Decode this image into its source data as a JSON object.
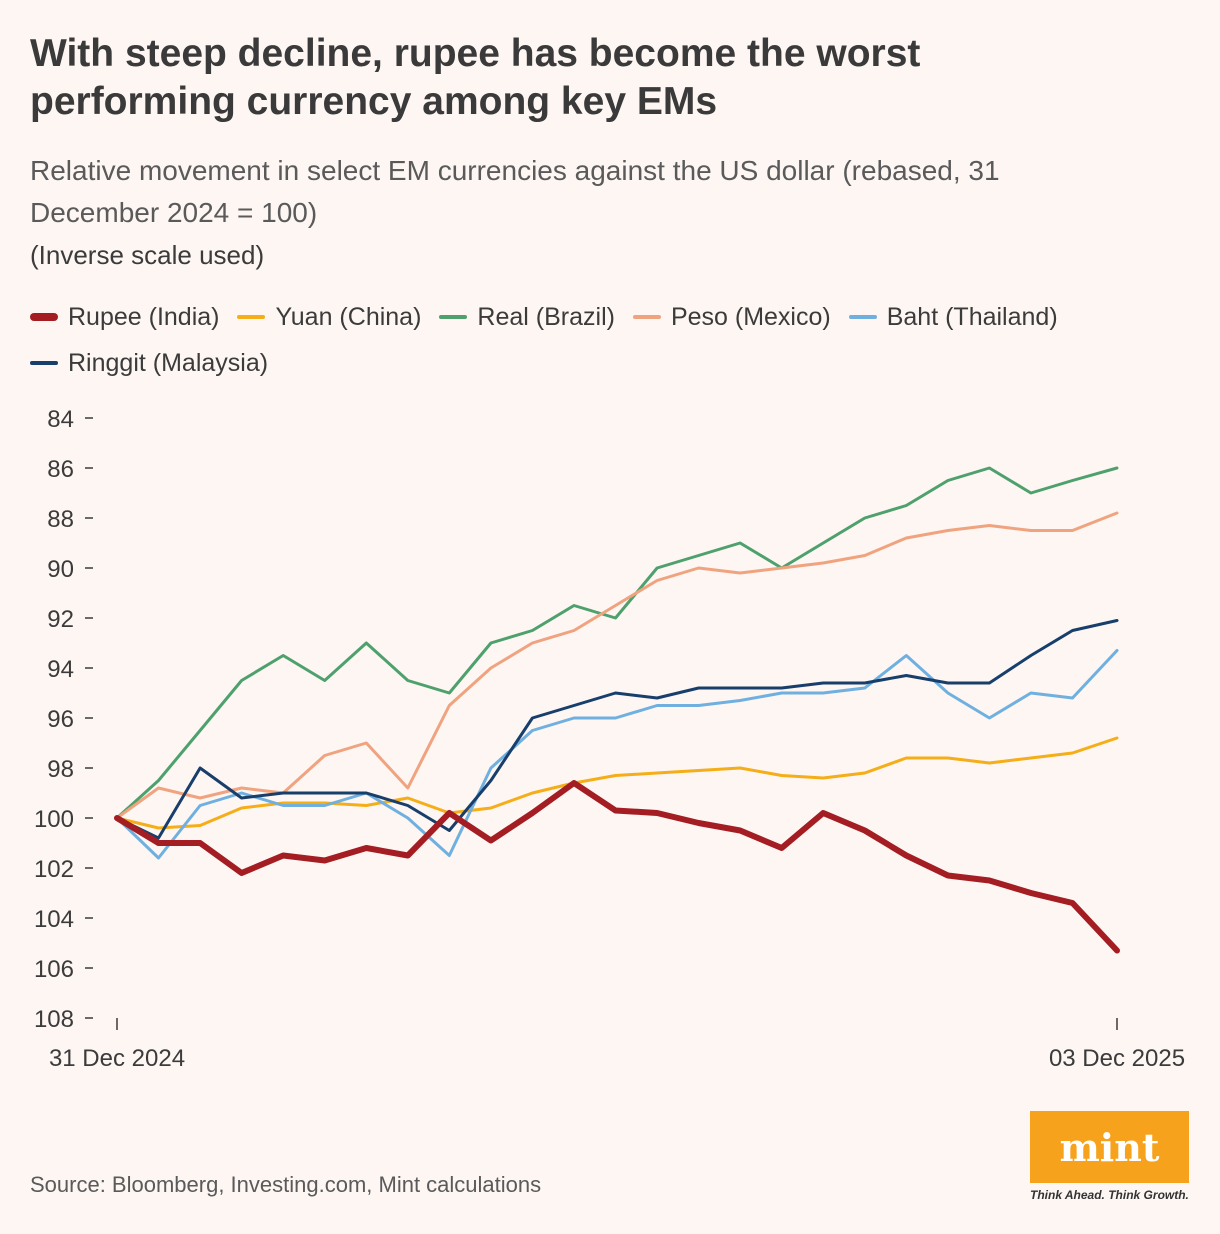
{
  "header": {
    "title": "With steep decline, rupee has become the worst performing currency among key EMs",
    "subtitle": "Relative movement in select EM currencies against the US dollar (rebased, 31 December 2024 = 100)",
    "note": "(Inverse scale used)"
  },
  "footer": {
    "source": "Source: Bloomberg, Investing.com, Mint calculations",
    "logo_text": "mint",
    "tagline": "Think Ahead. Think Growth."
  },
  "colors": {
    "background": "#fdf6f3",
    "logo_bg": "#f7a21c"
  },
  "chart_data": {
    "type": "line",
    "y_inverted": true,
    "ylim": [
      84,
      108
    ],
    "y_ticks": [
      84,
      86,
      88,
      90,
      92,
      94,
      96,
      98,
      100,
      102,
      104,
      106,
      108
    ],
    "x_range": [
      "31 Dec 2024",
      "03 Dec 2025"
    ],
    "x_tick_labels": [
      "31 Dec 2024",
      "03 Dec 2025"
    ],
    "legend_position": "top-left",
    "grid": false,
    "series": [
      {
        "name": "Rupee (India)",
        "color": "#a31d22",
        "thick": true,
        "points": [
          [
            "2024-12-31",
            100
          ],
          [
            "2025-01-14",
            101
          ],
          [
            "2025-01-28",
            101
          ],
          [
            "2025-02-11",
            102.2
          ],
          [
            "2025-02-25",
            101.5
          ],
          [
            "2025-03-11",
            101.7
          ],
          [
            "2025-03-25",
            101.2
          ],
          [
            "2025-04-08",
            101.5
          ],
          [
            "2025-04-22",
            99.8
          ],
          [
            "2025-05-06",
            100.9
          ],
          [
            "2025-05-20",
            99.8
          ],
          [
            "2025-06-03",
            98.6
          ],
          [
            "2025-06-17",
            99.7
          ],
          [
            "2025-07-01",
            99.8
          ],
          [
            "2025-07-15",
            100.2
          ],
          [
            "2025-07-29",
            100.5
          ],
          [
            "2025-08-12",
            101.2
          ],
          [
            "2025-08-26",
            99.8
          ],
          [
            "2025-09-09",
            100.5
          ],
          [
            "2025-09-23",
            101.5
          ],
          [
            "2025-10-07",
            102.3
          ],
          [
            "2025-10-21",
            102.5
          ],
          [
            "2025-11-04",
            103
          ],
          [
            "2025-11-18",
            103.4
          ],
          [
            "2025-12-03",
            105.3
          ]
        ]
      },
      {
        "name": "Yuan (China)",
        "color": "#f5ad18",
        "thick": false,
        "points": [
          [
            "2024-12-31",
            100
          ],
          [
            "2025-01-14",
            100.4
          ],
          [
            "2025-01-28",
            100.3
          ],
          [
            "2025-02-11",
            99.6
          ],
          [
            "2025-02-25",
            99.4
          ],
          [
            "2025-03-11",
            99.4
          ],
          [
            "2025-03-25",
            99.5
          ],
          [
            "2025-04-08",
            99.2
          ],
          [
            "2025-04-22",
            99.8
          ],
          [
            "2025-05-06",
            99.6
          ],
          [
            "2025-05-20",
            99.0
          ],
          [
            "2025-06-03",
            98.6
          ],
          [
            "2025-06-17",
            98.3
          ],
          [
            "2025-07-01",
            98.2
          ],
          [
            "2025-07-15",
            98.1
          ],
          [
            "2025-07-29",
            98.0
          ],
          [
            "2025-08-12",
            98.3
          ],
          [
            "2025-08-26",
            98.4
          ],
          [
            "2025-09-09",
            98.2
          ],
          [
            "2025-09-23",
            97.6
          ],
          [
            "2025-10-07",
            97.6
          ],
          [
            "2025-10-21",
            97.8
          ],
          [
            "2025-11-04",
            97.6
          ],
          [
            "2025-11-18",
            97.4
          ],
          [
            "2025-12-03",
            96.8
          ]
        ]
      },
      {
        "name": "Real (Brazil)",
        "color": "#4ea06d",
        "thick": false,
        "points": [
          [
            "2024-12-31",
            100
          ],
          [
            "2025-01-14",
            98.5
          ],
          [
            "2025-01-28",
            96.5
          ],
          [
            "2025-02-11",
            94.5
          ],
          [
            "2025-02-25",
            93.5
          ],
          [
            "2025-03-11",
            94.5
          ],
          [
            "2025-03-25",
            93.0
          ],
          [
            "2025-04-08",
            94.5
          ],
          [
            "2025-04-22",
            95.0
          ],
          [
            "2025-05-06",
            93.0
          ],
          [
            "2025-05-20",
            92.5
          ],
          [
            "2025-06-03",
            91.5
          ],
          [
            "2025-06-17",
            92.0
          ],
          [
            "2025-07-01",
            90.0
          ],
          [
            "2025-07-15",
            89.5
          ],
          [
            "2025-07-29",
            89.0
          ],
          [
            "2025-08-12",
            90.0
          ],
          [
            "2025-08-26",
            89.0
          ],
          [
            "2025-09-09",
            88.0
          ],
          [
            "2025-09-23",
            87.5
          ],
          [
            "2025-10-07",
            86.5
          ],
          [
            "2025-10-21",
            86.0
          ],
          [
            "2025-11-04",
            87.0
          ],
          [
            "2025-11-18",
            86.5
          ],
          [
            "2025-12-03",
            86.0
          ]
        ]
      },
      {
        "name": "Peso (Mexico)",
        "color": "#f0a37f",
        "thick": false,
        "points": [
          [
            "2024-12-31",
            100
          ],
          [
            "2025-01-14",
            98.8
          ],
          [
            "2025-01-28",
            99.2
          ],
          [
            "2025-02-11",
            98.8
          ],
          [
            "2025-02-25",
            99.0
          ],
          [
            "2025-03-11",
            97.5
          ],
          [
            "2025-03-25",
            97.0
          ],
          [
            "2025-04-08",
            98.8
          ],
          [
            "2025-04-22",
            95.5
          ],
          [
            "2025-05-06",
            94.0
          ],
          [
            "2025-05-20",
            93.0
          ],
          [
            "2025-06-03",
            92.5
          ],
          [
            "2025-06-17",
            91.5
          ],
          [
            "2025-07-01",
            90.5
          ],
          [
            "2025-07-15",
            90.0
          ],
          [
            "2025-07-29",
            90.2
          ],
          [
            "2025-08-12",
            90.0
          ],
          [
            "2025-08-26",
            89.8
          ],
          [
            "2025-09-09",
            89.5
          ],
          [
            "2025-09-23",
            88.8
          ],
          [
            "2025-10-07",
            88.5
          ],
          [
            "2025-10-21",
            88.3
          ],
          [
            "2025-11-04",
            88.5
          ],
          [
            "2025-11-18",
            88.5
          ],
          [
            "2025-12-03",
            87.8
          ]
        ]
      },
      {
        "name": "Baht (Thailand)",
        "color": "#6fb0e0",
        "thick": false,
        "points": [
          [
            "2024-12-31",
            100
          ],
          [
            "2025-01-14",
            101.6
          ],
          [
            "2025-01-28",
            99.5
          ],
          [
            "2025-02-11",
            99.0
          ],
          [
            "2025-02-25",
            99.5
          ],
          [
            "2025-03-11",
            99.5
          ],
          [
            "2025-03-25",
            99.0
          ],
          [
            "2025-04-08",
            100.0
          ],
          [
            "2025-04-22",
            101.5
          ],
          [
            "2025-05-06",
            98.0
          ],
          [
            "2025-05-20",
            96.5
          ],
          [
            "2025-06-03",
            96.0
          ],
          [
            "2025-06-17",
            96.0
          ],
          [
            "2025-07-01",
            95.5
          ],
          [
            "2025-07-15",
            95.5
          ],
          [
            "2025-07-29",
            95.3
          ],
          [
            "2025-08-12",
            95.0
          ],
          [
            "2025-08-26",
            95.0
          ],
          [
            "2025-09-09",
            94.8
          ],
          [
            "2025-09-23",
            93.5
          ],
          [
            "2025-10-07",
            95.0
          ],
          [
            "2025-10-21",
            96.0
          ],
          [
            "2025-11-04",
            95.0
          ],
          [
            "2025-11-18",
            95.2
          ],
          [
            "2025-12-03",
            93.3
          ]
        ]
      },
      {
        "name": "Ringgit (Malaysia)",
        "color": "#183e6b",
        "thick": false,
        "points": [
          [
            "2024-12-31",
            100
          ],
          [
            "2025-01-14",
            100.8
          ],
          [
            "2025-01-28",
            98.0
          ],
          [
            "2025-02-11",
            99.2
          ],
          [
            "2025-02-25",
            99.0
          ],
          [
            "2025-03-11",
            99.0
          ],
          [
            "2025-03-25",
            99.0
          ],
          [
            "2025-04-08",
            99.5
          ],
          [
            "2025-04-22",
            100.5
          ],
          [
            "2025-05-06",
            98.5
          ],
          [
            "2025-05-20",
            96.0
          ],
          [
            "2025-06-03",
            95.5
          ],
          [
            "2025-06-17",
            95.0
          ],
          [
            "2025-07-01",
            95.2
          ],
          [
            "2025-07-15",
            94.8
          ],
          [
            "2025-07-29",
            94.8
          ],
          [
            "2025-08-12",
            94.8
          ],
          [
            "2025-08-26",
            94.6
          ],
          [
            "2025-09-09",
            94.6
          ],
          [
            "2025-09-23",
            94.3
          ],
          [
            "2025-10-07",
            94.6
          ],
          [
            "2025-10-21",
            94.6
          ],
          [
            "2025-11-04",
            93.5
          ],
          [
            "2025-11-18",
            92.5
          ],
          [
            "2025-12-03",
            92.1
          ]
        ]
      }
    ]
  }
}
